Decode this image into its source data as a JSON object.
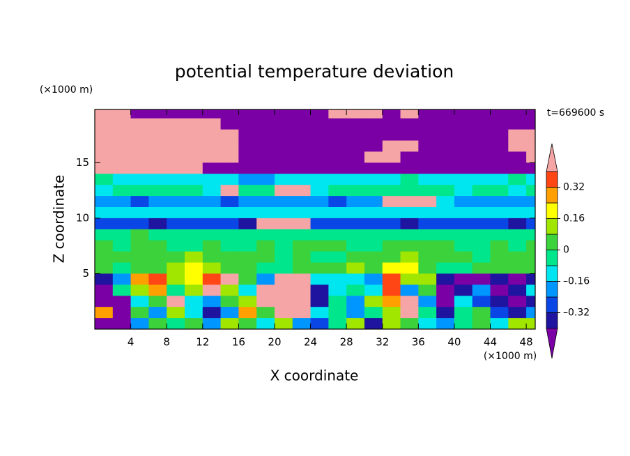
{
  "chart_data": {
    "type": "contour",
    "title": "potential temperature deviation",
    "xlabel": "X coordinate",
    "ylabel": "Z coordinate",
    "x_unit_label": "(×1000 m)",
    "y_unit_label": "(×1000 m)",
    "time_label": "t=669600 s",
    "xlim": [
      0,
      49
    ],
    "ylim": [
      0,
      19.8
    ],
    "xticks": [
      4,
      8,
      12,
      16,
      20,
      24,
      28,
      32,
      36,
      40,
      44,
      48
    ],
    "yticks": [
      5,
      10,
      15
    ],
    "x": [
      1,
      3,
      5,
      7,
      9,
      11,
      13,
      15,
      17,
      19,
      21,
      23,
      25,
      27,
      29,
      31,
      33,
      35,
      37,
      39,
      41,
      43,
      45,
      47,
      49
    ],
    "y": [
      19.5,
      18.5,
      17.5,
      16.5,
      15.5,
      14.5,
      13.5,
      12.5,
      11.5,
      10.5,
      9.5,
      8.5,
      7.5,
      6.5,
      5.5,
      4.5,
      3.5,
      2.5,
      1.5,
      0.5
    ],
    "levels": [
      -0.4,
      -0.32,
      -0.24,
      -0.16,
      -0.08,
      0,
      0.08,
      0.16,
      0.24,
      0.32,
      0.4
    ],
    "colors": [
      "#7a00a6",
      "#1e14a0",
      "#0a46e6",
      "#0096ff",
      "#00e6f0",
      "#00e68c",
      "#3cd23c",
      "#a0e600",
      "#ffff00",
      "#ffa000",
      "#ff4614",
      "#f5a5a5"
    ],
    "colorbar_ticks": [
      {
        "value": 0.32,
        "label": "0.32"
      },
      {
        "value": 0.16,
        "label": "0.16"
      },
      0,
      {
        "value": -0.16,
        "label": "–0.16"
      },
      {
        "value": -0.32,
        "label": "–0.32"
      }
    ],
    "z": [
      [
        0.5,
        0.5,
        -0.5,
        -0.5,
        -0.5,
        -0.5,
        -0.5,
        -0.5,
        -0.5,
        -0.5,
        -0.5,
        -0.5,
        -0.5,
        0.5,
        0.5,
        0.5,
        -0.5,
        0.5,
        -0.5,
        -0.5,
        -0.5,
        -0.5,
        -0.5,
        -0.5,
        -0.5
      ],
      [
        0.5,
        0.5,
        0.5,
        0.5,
        0.5,
        0.5,
        0.5,
        -0.5,
        -0.5,
        -0.5,
        -0.5,
        -0.5,
        -0.5,
        -0.5,
        -0.5,
        -0.5,
        -0.5,
        -0.5,
        -0.5,
        -0.5,
        -0.5,
        -0.5,
        -0.5,
        -0.5,
        -0.5
      ],
      [
        0.5,
        0.5,
        0.5,
        0.5,
        0.5,
        0.5,
        0.5,
        0.5,
        -0.5,
        -0.5,
        -0.5,
        -0.5,
        -0.5,
        -0.5,
        -0.5,
        -0.5,
        -0.5,
        -0.5,
        -0.5,
        -0.5,
        -0.5,
        -0.5,
        -0.5,
        0.5,
        0.5
      ],
      [
        0.5,
        0.5,
        0.5,
        0.5,
        0.5,
        0.5,
        0.5,
        0.5,
        -0.5,
        -0.5,
        -0.5,
        -0.5,
        -0.5,
        -0.5,
        -0.5,
        -0.5,
        0.5,
        0.5,
        -0.5,
        -0.5,
        -0.5,
        -0.5,
        -0.5,
        0.5,
        0.5
      ],
      [
        0.5,
        0.5,
        0.5,
        0.5,
        0.5,
        0.5,
        0.5,
        0.5,
        -0.5,
        -0.5,
        -0.5,
        -0.5,
        -0.5,
        -0.5,
        -0.5,
        0.5,
        0.5,
        -0.5,
        -0.5,
        -0.5,
        -0.5,
        -0.5,
        -0.5,
        -0.5,
        0.5
      ],
      [
        0.5,
        0.5,
        0.5,
        0.5,
        0.5,
        0.5,
        -0.5,
        -0.5,
        -0.5,
        -0.5,
        -0.5,
        -0.5,
        -0.5,
        -0.5,
        -0.5,
        -0.5,
        -0.5,
        -0.5,
        -0.5,
        -0.5,
        -0.5,
        -0.5,
        -0.5,
        -0.5,
        -0.5
      ],
      [
        -0.04,
        -0.12,
        -0.12,
        -0.12,
        -0.12,
        -0.12,
        -0.12,
        -0.12,
        -0.2,
        -0.2,
        -0.12,
        -0.12,
        -0.12,
        -0.12,
        -0.12,
        -0.12,
        -0.12,
        -0.04,
        -0.12,
        -0.12,
        -0.12,
        -0.12,
        -0.12,
        -0.04,
        -0.12
      ],
      [
        -0.12,
        -0.04,
        -0.04,
        -0.04,
        -0.04,
        -0.04,
        -0.12,
        0.5,
        -0.04,
        -0.04,
        0.5,
        0.5,
        -0.12,
        -0.04,
        -0.04,
        -0.04,
        -0.04,
        -0.04,
        -0.04,
        -0.04,
        -0.12,
        -0.04,
        -0.04,
        -0.12,
        -0.04
      ],
      [
        -0.2,
        -0.2,
        -0.28,
        -0.2,
        -0.2,
        -0.2,
        -0.2,
        -0.28,
        -0.2,
        -0.2,
        -0.2,
        -0.2,
        -0.2,
        -0.28,
        -0.2,
        -0.2,
        0.5,
        0.5,
        0.5,
        -0.12,
        -0.2,
        -0.2,
        -0.2,
        -0.2,
        -0.2
      ],
      [
        -0.12,
        -0.12,
        -0.12,
        -0.12,
        -0.12,
        -0.12,
        -0.12,
        -0.12,
        -0.12,
        -0.12,
        -0.12,
        -0.12,
        -0.12,
        -0.12,
        -0.12,
        -0.12,
        -0.12,
        -0.12,
        -0.12,
        -0.12,
        -0.12,
        -0.12,
        -0.12,
        -0.12,
        -0.12
      ],
      [
        -0.28,
        -0.28,
        -0.28,
        -0.36,
        -0.28,
        -0.28,
        -0.28,
        -0.28,
        -0.36,
        0.5,
        0.5,
        0.5,
        -0.28,
        -0.28,
        -0.28,
        -0.28,
        -0.28,
        -0.36,
        -0.28,
        -0.28,
        -0.28,
        -0.28,
        -0.28,
        -0.36,
        -0.28
      ],
      [
        -0.04,
        -0.04,
        0.04,
        -0.04,
        -0.04,
        -0.04,
        -0.04,
        -0.04,
        -0.04,
        -0.04,
        -0.04,
        -0.04,
        -0.04,
        -0.04,
        -0.04,
        -0.04,
        -0.04,
        -0.04,
        -0.04,
        -0.04,
        -0.04,
        -0.04,
        -0.04,
        -0.04,
        -0.04
      ],
      [
        0.04,
        -0.04,
        0.04,
        0.04,
        -0.04,
        -0.04,
        0.04,
        -0.04,
        -0.04,
        0.04,
        -0.04,
        0.04,
        0.04,
        0.04,
        -0.04,
        -0.04,
        0.04,
        0.04,
        0.04,
        0.04,
        -0.04,
        -0.04,
        0.04,
        -0.04,
        0.04
      ],
      [
        0.04,
        0.04,
        0.04,
        0.04,
        0.04,
        0.12,
        0.04,
        0.04,
        0.04,
        0.04,
        -0.04,
        0.04,
        -0.04,
        -0.04,
        0.04,
        0.04,
        0.04,
        0.12,
        0.04,
        0.04,
        0.04,
        -0.04,
        0.04,
        0.04,
        0.04
      ],
      [
        0.04,
        -0.04,
        0.04,
        0.04,
        0.12,
        0.2,
        0.12,
        0.04,
        0.04,
        -0.04,
        -0.04,
        0.04,
        0.04,
        0.04,
        0.12,
        0.04,
        0.2,
        0.2,
        0.04,
        -0.04,
        -0.04,
        0.04,
        0.04,
        0.04,
        0.04
      ],
      [
        -0.36,
        -0.2,
        0.28,
        0.36,
        0.12,
        0.2,
        0.36,
        0.5,
        0.04,
        -0.2,
        0.5,
        0.5,
        -0.12,
        -0.12,
        -0.12,
        -0.2,
        0.36,
        0.12,
        0.12,
        -0.36,
        -0.5,
        -0.5,
        -0.36,
        -0.5,
        -0.36
      ],
      [
        -0.5,
        -0.04,
        0.12,
        0.28,
        -0.04,
        0.12,
        0.5,
        0.12,
        -0.12,
        0.5,
        0.5,
        0.5,
        -0.36,
        -0.12,
        -0.04,
        -0.12,
        0.36,
        -0.2,
        0.04,
        -0.5,
        -0.36,
        -0.2,
        -0.5,
        -0.36,
        -0.12
      ],
      [
        -0.5,
        -0.5,
        -0.12,
        0.04,
        0.5,
        -0.12,
        -0.2,
        0.04,
        0.12,
        0.5,
        0.5,
        0.5,
        -0.36,
        -0.04,
        -0.2,
        0.12,
        0.28,
        0.5,
        -0.2,
        -0.5,
        -0.12,
        -0.28,
        -0.36,
        -0.5,
        -0.36
      ],
      [
        0.28,
        -0.5,
        0.04,
        -0.2,
        0.12,
        -0.12,
        -0.36,
        -0.2,
        0.28,
        0.04,
        0.5,
        0.5,
        -0.12,
        -0.04,
        -0.2,
        -0.04,
        0.12,
        0.5,
        -0.04,
        -0.36,
        -0.04,
        0.04,
        -0.28,
        -0.36,
        -0.2
      ],
      [
        -0.5,
        -0.5,
        -0.2,
        0.04,
        -0.04,
        0.04,
        -0.2,
        0.12,
        0.04,
        -0.12,
        0.12,
        -0.2,
        -0.28,
        -0.04,
        0.12,
        -0.36,
        0.12,
        0.04,
        -0.12,
        -0.2,
        -0.04,
        0.04,
        -0.12,
        0.12,
        0.12
      ]
    ]
  }
}
